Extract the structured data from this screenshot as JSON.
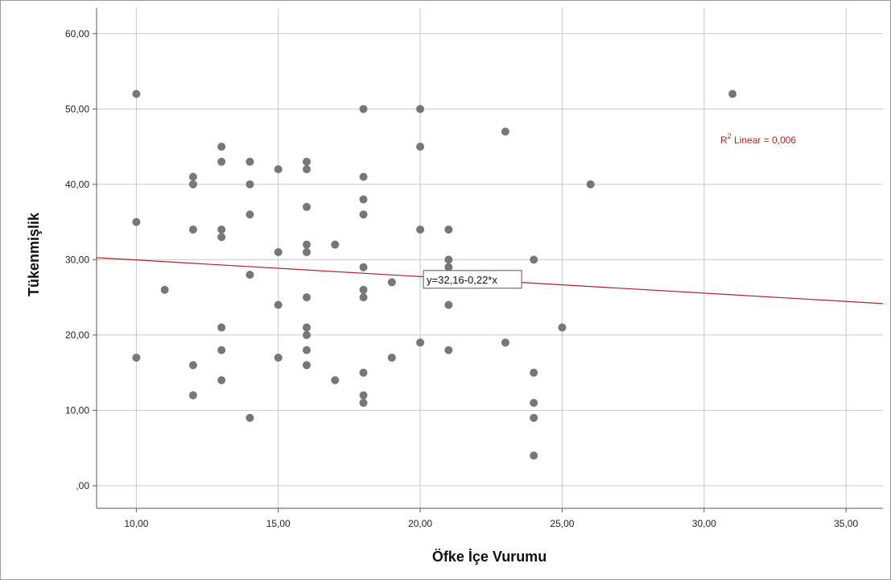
{
  "chart_data": {
    "type": "scatter",
    "xlabel": "Öfke İçe Vurumu",
    "ylabel": "Tükenmişlik",
    "xlim": [
      8.6,
      36.3
    ],
    "ylim": [
      -3,
      63.4
    ],
    "x_ticks": [
      10,
      15,
      20,
      25,
      30,
      35
    ],
    "x_tick_labels": [
      "10,00",
      "15,00",
      "20,00",
      "25,00",
      "30,00",
      "35,00"
    ],
    "y_ticks": [
      0,
      10,
      20,
      30,
      40,
      50,
      60
    ],
    "y_tick_labels": [
      ",00",
      "10,00",
      "20,00",
      "30,00",
      "40,00",
      "50,00",
      "60,00"
    ],
    "grid": true,
    "fit_line": {
      "intercept": 32.16,
      "slope": -0.22,
      "equation_label": "y=32,16-0,22*x",
      "label_x": 21.7
    },
    "r2_label_prefix": "R",
    "r2_label_sup": "2",
    "r2_label_rest": " Linear = 0,006",
    "colors": {
      "points": "#777777",
      "fit_line": "#b22222",
      "r2_text": "#b22222",
      "grid": "#c8c8c8",
      "axis": "#555555"
    },
    "points": [
      [
        10,
        52
      ],
      [
        10,
        35
      ],
      [
        10,
        17
      ],
      [
        11,
        26
      ],
      [
        12,
        41
      ],
      [
        12,
        40
      ],
      [
        12,
        34
      ],
      [
        12,
        16
      ],
      [
        12,
        12
      ],
      [
        13,
        45
      ],
      [
        13,
        43
      ],
      [
        13,
        34
      ],
      [
        13,
        33
      ],
      [
        13,
        21
      ],
      [
        13,
        18
      ],
      [
        13,
        14
      ],
      [
        14,
        43
      ],
      [
        14,
        40
      ],
      [
        14,
        36
      ],
      [
        14,
        28
      ],
      [
        14,
        9
      ],
      [
        15,
        42
      ],
      [
        15,
        31
      ],
      [
        15,
        24
      ],
      [
        15,
        17
      ],
      [
        16,
        43
      ],
      [
        16,
        42
      ],
      [
        16,
        37
      ],
      [
        16,
        32
      ],
      [
        16,
        31
      ],
      [
        16,
        25
      ],
      [
        16,
        21
      ],
      [
        16,
        20
      ],
      [
        16,
        18
      ],
      [
        16,
        16
      ],
      [
        17,
        32
      ],
      [
        17,
        14
      ],
      [
        18,
        50
      ],
      [
        18,
        41
      ],
      [
        18,
        38
      ],
      [
        18,
        36
      ],
      [
        18,
        29
      ],
      [
        18,
        26
      ],
      [
        18,
        25
      ],
      [
        18,
        15
      ],
      [
        18,
        12
      ],
      [
        18,
        11
      ],
      [
        19,
        27
      ],
      [
        19,
        17
      ],
      [
        20,
        50
      ],
      [
        20,
        45
      ],
      [
        20,
        34
      ],
      [
        20,
        19
      ],
      [
        21,
        34
      ],
      [
        21,
        30
      ],
      [
        21,
        29
      ],
      [
        21,
        24
      ],
      [
        21,
        18
      ],
      [
        23,
        47
      ],
      [
        23,
        19
      ],
      [
        24,
        30
      ],
      [
        24,
        15
      ],
      [
        24,
        11
      ],
      [
        24,
        9
      ],
      [
        24,
        4
      ],
      [
        25,
        21
      ],
      [
        26,
        40
      ],
      [
        31,
        52
      ]
    ]
  }
}
